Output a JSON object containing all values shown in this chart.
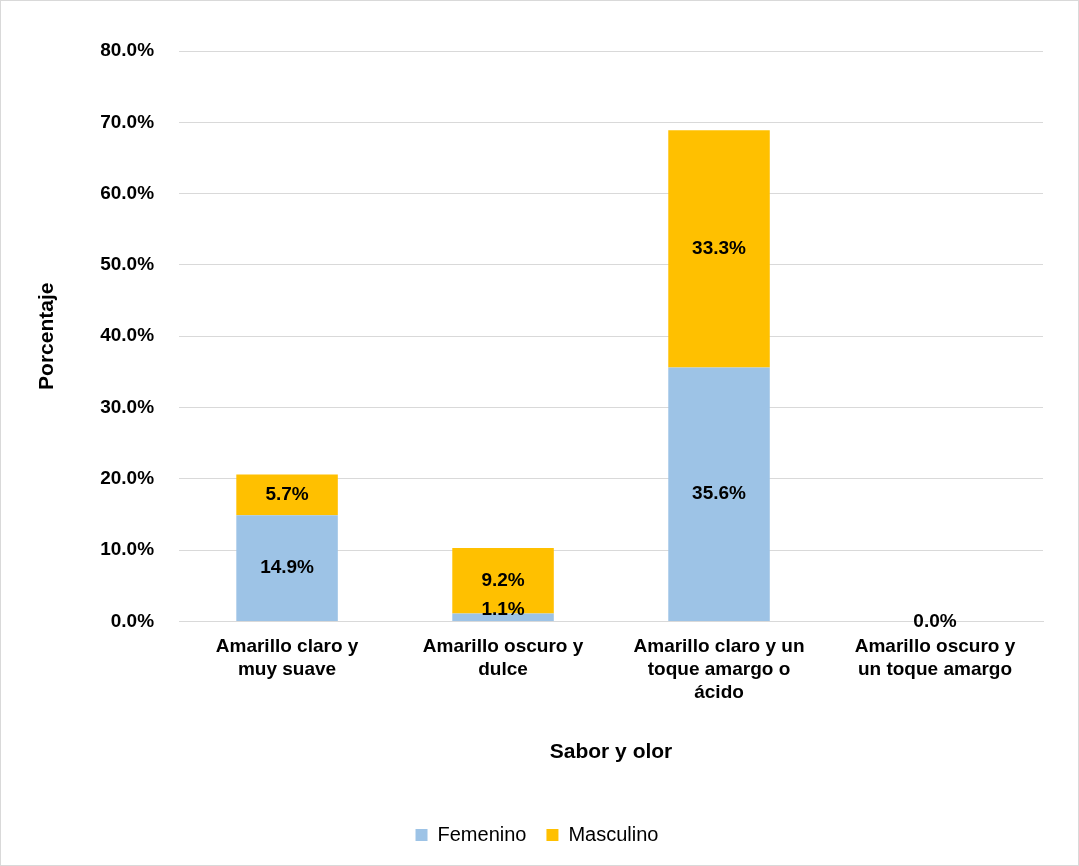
{
  "chart_data": {
    "type": "bar",
    "stacked": true,
    "xlabel": "Sabor y olor",
    "ylabel": "Porcentaje",
    "categories": [
      "Amarillo claro y muy suave",
      "Amarillo oscuro y dulce",
      "Amarillo claro y un toque amargo o ácido",
      "Amarillo oscuro y un toque amargo"
    ],
    "series": [
      {
        "name": "Femenino",
        "color": "#9dc3e6",
        "values": [
          14.9,
          1.1,
          35.6,
          0.0
        ],
        "value_labels": [
          "14.9%",
          "1.1%",
          "35.6%",
          "0.0%"
        ]
      },
      {
        "name": "Masculino",
        "color": "#ffc000",
        "values": [
          5.7,
          9.2,
          33.3,
          0.0
        ],
        "value_labels": [
          "5.7%",
          "9.2%",
          "33.3%",
          null
        ]
      }
    ],
    "ylim": [
      0,
      80
    ],
    "yticks": [
      {
        "value": 0,
        "label": "0.0%"
      },
      {
        "value": 10,
        "label": "10.0%"
      },
      {
        "value": 20,
        "label": "20.0%"
      },
      {
        "value": 30,
        "label": "30.0%"
      },
      {
        "value": 40,
        "label": "40.0%"
      },
      {
        "value": 50,
        "label": "50.0%"
      },
      {
        "value": 60,
        "label": "60.0%"
      },
      {
        "value": 70,
        "label": "70.0%"
      },
      {
        "value": 80,
        "label": "80.0%"
      }
    ],
    "grid": "y",
    "legend": "bottom"
  }
}
